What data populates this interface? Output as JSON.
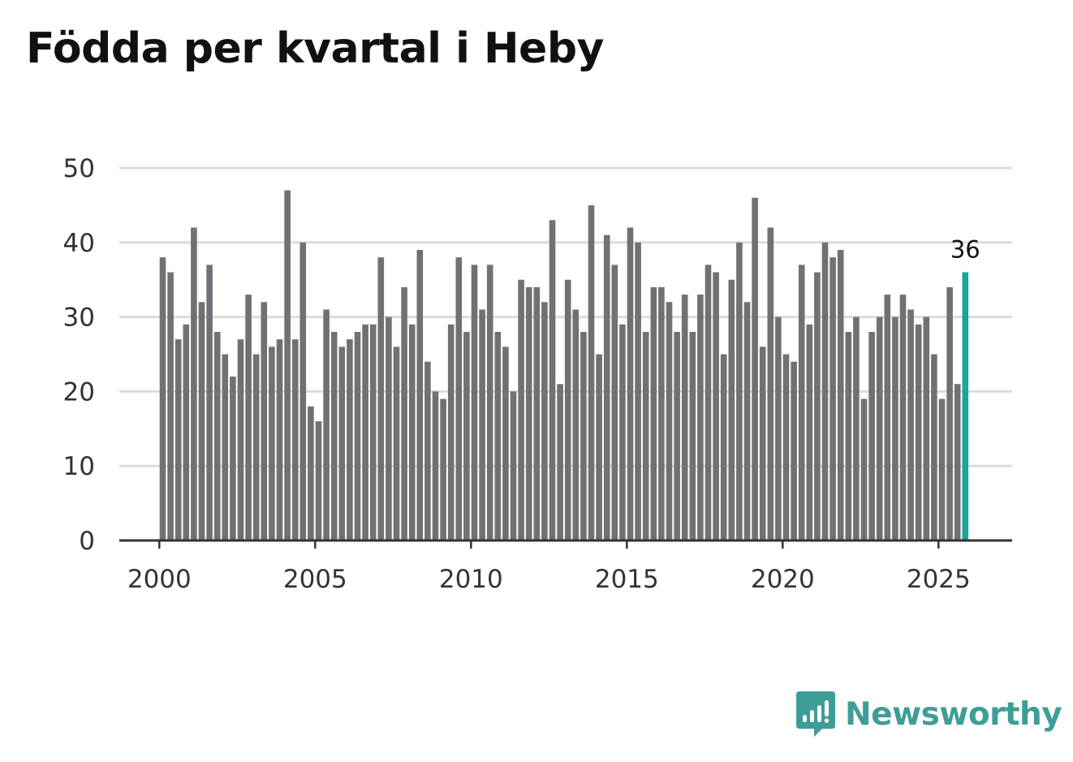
{
  "title": "Födda per kvartal i Heby",
  "brand": {
    "name": "Newsworthy",
    "color": "#3e9e97"
  },
  "colors": {
    "bar": "#717075",
    "highlight": "#1aa49a",
    "grid": "#dcdcdc",
    "axis": "#333333"
  },
  "chart_data": {
    "type": "bar",
    "title": "Födda per kvartal i Heby",
    "xlabel": "",
    "ylabel": "",
    "ylim": [
      0,
      50
    ],
    "yticks": [
      0,
      10,
      20,
      30,
      40,
      50
    ],
    "xticks": [
      "2000",
      "2005",
      "2010",
      "2015",
      "2020",
      "2025"
    ],
    "start_year": 2000,
    "values": [
      38,
      36,
      27,
      29,
      42,
      32,
      37,
      28,
      25,
      22,
      27,
      33,
      25,
      32,
      26,
      27,
      47,
      27,
      40,
      18,
      16,
      31,
      28,
      26,
      27,
      28,
      29,
      29,
      38,
      30,
      26,
      34,
      29,
      39,
      24,
      20,
      19,
      29,
      38,
      28,
      37,
      31,
      37,
      28,
      26,
      20,
      35,
      34,
      34,
      32,
      43,
      21,
      35,
      31,
      28,
      45,
      25,
      41,
      37,
      29,
      42,
      40,
      28,
      34,
      34,
      32,
      28,
      33,
      28,
      33,
      37,
      36,
      25,
      35,
      40,
      32,
      46,
      26,
      42,
      30,
      25,
      24,
      37,
      29,
      36,
      40,
      38,
      39,
      28,
      30,
      19,
      28,
      30,
      33,
      30,
      33,
      31,
      29,
      30,
      25,
      19,
      34,
      21,
      36
    ],
    "highlight_index": 103,
    "highlight_label": "36"
  }
}
